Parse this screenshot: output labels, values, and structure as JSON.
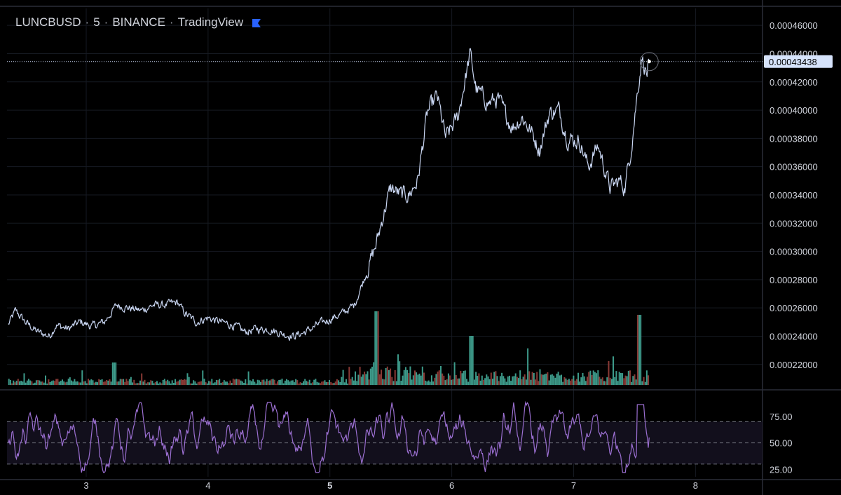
{
  "legend": {
    "symbol": "LUNCBUSD",
    "interval": "5",
    "exchange": "BINANCE",
    "source": "TradingView",
    "separator": "·"
  },
  "colors": {
    "background": "#000000",
    "price_line": "#c9d6f2",
    "rsi_line": "#9b6fd1",
    "volume_up": "#3d9a8a",
    "volume_down": "#8a3a36",
    "rsi_band": "#120f1c",
    "last_price_label_bg": "#d6e3fb",
    "last_price_label_text": "#000000",
    "flag": "#2962ff"
  },
  "last_price_label": "0.00043438",
  "chart_data": [
    {
      "type": "line",
      "panel": "price",
      "series": [
        {
          "name": "LUNCBUSD",
          "points_note": "5-minute closes"
        }
      ],
      "x_ticks": [
        "3",
        "4",
        "5",
        "6",
        "7",
        "8"
      ],
      "x_range_days": [
        2.35,
        8.55
      ],
      "y_ticks": [
        "0.00046000",
        "0.00044000",
        "0.00042000",
        "0.00040000",
        "0.00038000",
        "0.00036000",
        "0.00034000",
        "0.00032000",
        "0.00030000",
        "0.00028000",
        "0.00026000",
        "0.00024000",
        "0.00022000"
      ],
      "ylim": [
        0.000205,
        0.000472
      ],
      "last_value": 0.00043438,
      "anchors": [
        [
          2.36,
          0.000248
        ],
        [
          2.42,
          0.000258
        ],
        [
          2.5,
          0.00025
        ],
        [
          2.6,
          0.000243
        ],
        [
          2.7,
          0.00024
        ],
        [
          2.75,
          0.000248
        ],
        [
          2.85,
          0.000245
        ],
        [
          2.95,
          0.00025
        ],
        [
          3.05,
          0.000247
        ],
        [
          3.15,
          0.00025
        ],
        [
          3.25,
          0.000262
        ],
        [
          3.35,
          0.00026
        ],
        [
          3.45,
          0.000258
        ],
        [
          3.55,
          0.000262
        ],
        [
          3.65,
          0.000262
        ],
        [
          3.75,
          0.000264
        ],
        [
          3.8,
          0.000257
        ],
        [
          3.9,
          0.00025
        ],
        [
          4.0,
          0.000253
        ],
        [
          4.1,
          0.00025
        ],
        [
          4.2,
          0.000248
        ],
        [
          4.3,
          0.000243
        ],
        [
          4.4,
          0.000245
        ],
        [
          4.5,
          0.000245
        ],
        [
          4.6,
          0.000242
        ],
        [
          4.7,
          0.00024
        ],
        [
          4.8,
          0.000243
        ],
        [
          4.9,
          0.000248
        ],
        [
          5.0,
          0.000252
        ],
        [
          5.1,
          0.000256
        ],
        [
          5.2,
          0.000262
        ],
        [
          5.3,
          0.000285
        ],
        [
          5.38,
          0.000305
        ],
        [
          5.45,
          0.00033
        ],
        [
          5.5,
          0.000345
        ],
        [
          5.58,
          0.00034
        ],
        [
          5.65,
          0.00034
        ],
        [
          5.72,
          0.00035
        ],
        [
          5.8,
          0.000398
        ],
        [
          5.88,
          0.00041
        ],
        [
          5.95,
          0.00038
        ],
        [
          6.05,
          0.000395
        ],
        [
          6.15,
          0.00044
        ],
        [
          6.2,
          0.000415
        ],
        [
          6.3,
          0.000405
        ],
        [
          6.38,
          0.000408
        ],
        [
          6.45,
          0.000395
        ],
        [
          6.5,
          0.000388
        ],
        [
          6.58,
          0.000395
        ],
        [
          6.65,
          0.000385
        ],
        [
          6.72,
          0.000372
        ],
        [
          6.8,
          0.000398
        ],
        [
          6.88,
          0.0004
        ],
        [
          6.95,
          0.00038
        ],
        [
          7.05,
          0.000378
        ],
        [
          7.12,
          0.00036
        ],
        [
          7.2,
          0.000375
        ],
        [
          7.25,
          0.00036
        ],
        [
          7.3,
          0.000345
        ],
        [
          7.38,
          0.00035
        ],
        [
          7.42,
          0.000345
        ],
        [
          7.47,
          0.000372
        ],
        [
          7.52,
          0.00041
        ],
        [
          7.56,
          0.000438
        ],
        [
          7.6,
          0.000425
        ],
        [
          7.62,
          0.000434
        ]
      ]
    },
    {
      "type": "bar",
      "panel": "volume",
      "series": [
        {
          "name": "Volume"
        }
      ],
      "note": "volume histogram at bottom of price panel, teal = up bar, red = down bar; low before 5, elevated from 5.2 onward, spikes near 5.38, 6.15, 7.5"
    },
    {
      "type": "line",
      "panel": "rsi",
      "series": [
        {
          "name": "RSI"
        }
      ],
      "y_ticks": [
        "75.00",
        "50.00",
        "25.00"
      ],
      "ylim": [
        18,
        96
      ],
      "bands": [
        70,
        30
      ],
      "mid_line": 50,
      "last_value": 55
    }
  ]
}
